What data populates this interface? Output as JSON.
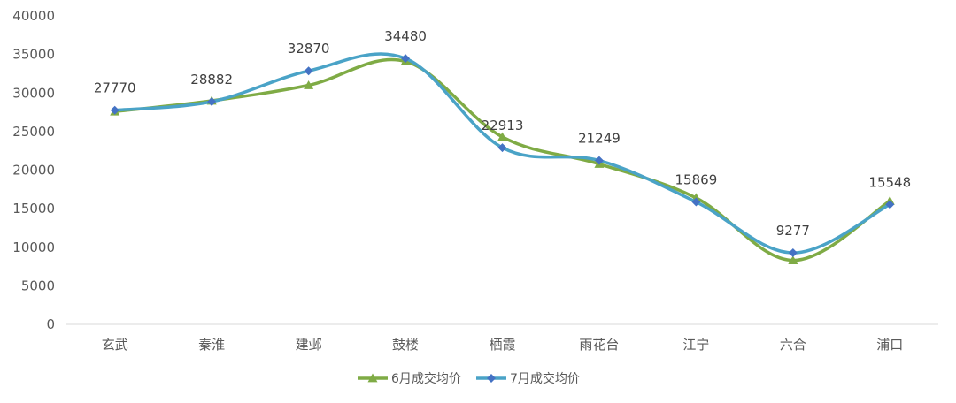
{
  "chart_data": {
    "type": "line",
    "categories": [
      "玄武",
      "秦淮",
      "建邺",
      "鼓楼",
      "栖霞",
      "雨花台",
      "江宁",
      "六合",
      "浦口"
    ],
    "series": [
      {
        "name": "6月成交均价",
        "values": [
          27600,
          29000,
          31000,
          34100,
          24300,
          20800,
          16400,
          8300,
          16000
        ],
        "color": "#7fab45",
        "marker": "triangle"
      },
      {
        "name": "7月成交均价",
        "values": [
          27770,
          28882,
          32870,
          34480,
          22913,
          21249,
          15869,
          9277,
          15548
        ],
        "color": "#4aa3c7",
        "markerColor": "#4472c4",
        "marker": "diamond",
        "data_labels": [
          "27770",
          "28882",
          "32870",
          "34480",
          "22913",
          "21249",
          "15869",
          "9277",
          "15548"
        ]
      }
    ],
    "y_ticks": [
      "0",
      "5000",
      "10000",
      "15000",
      "20000",
      "25000",
      "30000",
      "35000",
      "40000"
    ],
    "ylim": [
      0,
      40000
    ],
    "grid": false,
    "legend_position": "bottom",
    "title": "",
    "xlabel": "",
    "ylabel": ""
  }
}
